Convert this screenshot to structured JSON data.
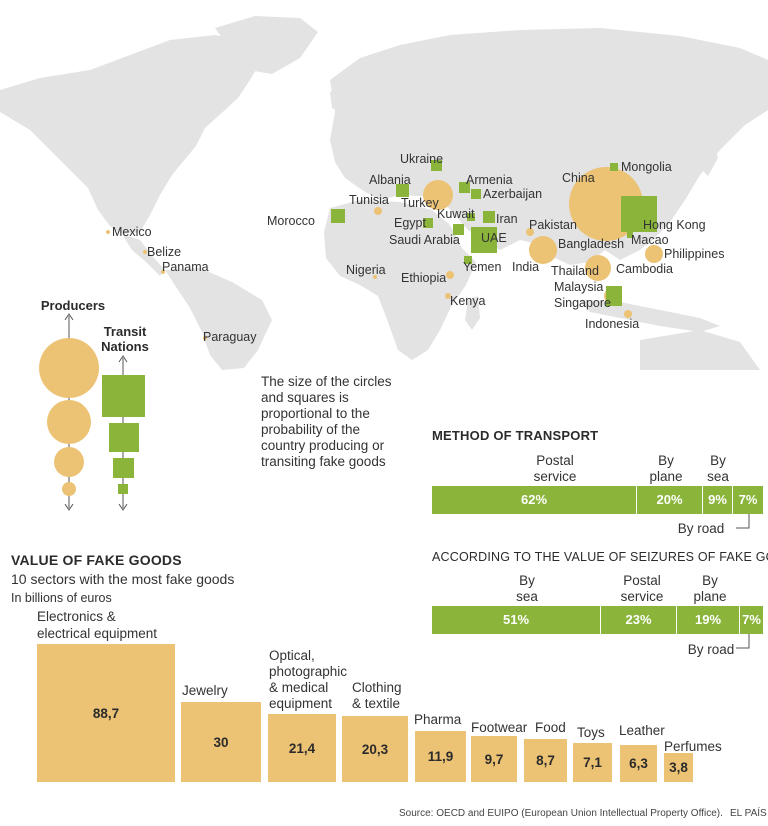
{
  "map": {
    "labels": {
      "ukraine": "Ukraine",
      "armenia": "Armenia",
      "albania": "Albania",
      "azerbaijan": "Azerbaijan",
      "china": "China",
      "mongolia": "Mongolia",
      "tunisia": "Tunisia",
      "turkey": "Turkey",
      "kuwait": "Kuwait",
      "iran": "Iran",
      "egypt": "Egypt",
      "morocco": "Morocco",
      "saudi_arabia": "Saudi Arabia",
      "uae": "UAE",
      "pakistan": "Pakistan",
      "hong_kong": "Hong Kong",
      "macao": "Macao",
      "bangladesh": "Bangladesh",
      "philippines": "Philippines",
      "mexico": "Mexico",
      "belize": "Belize",
      "panama": "Panama",
      "india": "India",
      "yemen": "Yemen",
      "thailand": "Thailand",
      "cambodia": "Cambodia",
      "nigeria": "Nigeria",
      "ethiopia": "Ethiopia",
      "malaysia": "Malaysia",
      "singapore": "Singapore",
      "kenya": "Kenya",
      "indonesia": "Indonesia",
      "paraguay": "Paraguay"
    },
    "producer_color": "#ecc274",
    "transit_color": "#8ab53a"
  },
  "legend": {
    "producers": "Producers",
    "transit_line1": "Transit",
    "transit_line2": "Nations"
  },
  "description": "The size of the circles and squares is proportional to the probability of the country producing or transiting fake goods",
  "transport": {
    "title": "METHOD OF TRANSPORT",
    "labels": {
      "postal_1": "Postal",
      "postal_2": "service",
      "plane_1": "By",
      "plane_2": "plane",
      "sea_1": "By",
      "sea_2": "sea",
      "road": "By road"
    },
    "values": {
      "postal": "62%",
      "plane": "20%",
      "sea": "9%",
      "road": "7%"
    }
  },
  "seizures": {
    "title": "ACCORDING TO THE VALUE OF  SEIZURES OF FAKE GOODS",
    "labels": {
      "sea_1": "By",
      "sea_2": "sea",
      "postal_1": "Postal",
      "postal_2": "service",
      "plane_1": "By",
      "plane_2": "plane",
      "road": "By road"
    },
    "values": {
      "sea": "51%",
      "postal": "23%",
      "plane": "19%",
      "road": "7%"
    }
  },
  "goods": {
    "title": "VALUE OF FAKE GOODS",
    "subtitle": "10 sectors with the most fake goods",
    "unit": "In billions of euros",
    "label_lines": {
      "electronics_1": "Electronics &",
      "electronics_2": "electrical equipment",
      "jewelry": "Jewelry",
      "optical_1": "Optical,",
      "optical_2": "photographic",
      "optical_3": "& medical",
      "optical_4": "equipment",
      "clothing_1": "Clothing",
      "clothing_2": "& textile",
      "pharma": "Pharma",
      "footwear": "Footwear",
      "food": "Food",
      "toys": "Toys",
      "leather": "Leather",
      "perfumes": "Perfumes"
    },
    "value_labels": {
      "electronics": "88,7",
      "jewelry": "30",
      "optical": "21,4",
      "clothing": "20,3",
      "pharma": "11,9",
      "footwear": "9,7",
      "food": "8,7",
      "toys": "7,1",
      "leather": "6,3",
      "perfumes": "3,8"
    }
  },
  "chart_data": [
    {
      "type": "bar",
      "title": "METHOD OF TRANSPORT",
      "categories": [
        "Postal service",
        "By plane",
        "By sea",
        "By road"
      ],
      "values": [
        62,
        20,
        9,
        7
      ],
      "unit": "%"
    },
    {
      "type": "bar",
      "title": "ACCORDING TO THE VALUE OF  SEIZURES OF FAKE GOODS",
      "categories": [
        "By sea",
        "Postal service",
        "By plane",
        "By road"
      ],
      "values": [
        51,
        23,
        19,
        7
      ],
      "unit": "%"
    },
    {
      "type": "bar",
      "title": "VALUE OF FAKE GOODS",
      "subtitle": "10 sectors with the most fake goods",
      "ylabel": "In billions of euros",
      "categories": [
        "Electronics & electrical equipment",
        "Jewelry",
        "Optical, photographic & medical equipment",
        "Clothing & textile",
        "Pharma",
        "Footwear",
        "Food",
        "Toys",
        "Leather",
        "Perfumes"
      ],
      "values": [
        88.7,
        30,
        21.4,
        20.3,
        11.9,
        9.7,
        8.7,
        7.1,
        6.3,
        3.8
      ]
    }
  ],
  "footer": {
    "source": "Source: OECD and EUIPO (European Union Intellectual Property Office).",
    "brand": "EL PAÍS"
  }
}
